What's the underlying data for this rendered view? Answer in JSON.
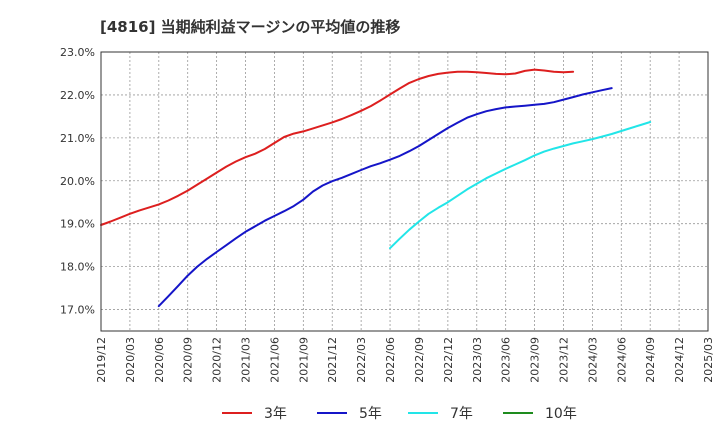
{
  "title": "[4816]  当期純利益マージンの平均値の推移",
  "chart_data": {
    "type": "line",
    "ylim": [
      16.5,
      23.0
    ],
    "y_ticks": [
      "17.0%",
      "18.0%",
      "19.0%",
      "20.0%",
      "21.0%",
      "22.0%",
      "23.0%"
    ],
    "y_tick_values": [
      17.0,
      18.0,
      19.0,
      20.0,
      21.0,
      22.0,
      23.0
    ],
    "x_ticks": [
      "2019/12",
      "2020/03",
      "2020/06",
      "2020/09",
      "2020/12",
      "2021/03",
      "2021/06",
      "2021/09",
      "2021/12",
      "2022/03",
      "2022/06",
      "2022/09",
      "2022/12",
      "2023/03",
      "2023/06",
      "2023/09",
      "2023/12",
      "2024/03",
      "2024/06",
      "2024/09",
      "2024/12",
      "2025/03"
    ],
    "grid": true,
    "legend_position": "bottom",
    "series": [
      {
        "name": "3年",
        "color": "#dd1f1f",
        "start_index": 0,
        "values": [
          18.97,
          19.05,
          19.14,
          19.23,
          19.31,
          19.38,
          19.45,
          19.54,
          19.65,
          19.77,
          19.91,
          20.05,
          20.19,
          20.33,
          20.45,
          20.55,
          20.63,
          20.74,
          20.88,
          21.02,
          21.1,
          21.15,
          21.22,
          21.29,
          21.36,
          21.44,
          21.53,
          21.63,
          21.74,
          21.87,
          22.01,
          22.15,
          22.28,
          22.37,
          22.44,
          22.49,
          22.52,
          22.54,
          22.54,
          22.53,
          22.51,
          22.49,
          22.48,
          22.5,
          22.56,
          22.59,
          22.57,
          22.54,
          22.53,
          22.54
        ]
      },
      {
        "name": "5年",
        "color": "#1515c8",
        "start_index": 6,
        "values": [
          17.08,
          17.31,
          17.55,
          17.79,
          18.0,
          18.18,
          18.34,
          18.5,
          18.66,
          18.81,
          18.94,
          19.07,
          19.18,
          19.29,
          19.41,
          19.56,
          19.75,
          19.89,
          19.99,
          20.07,
          20.16,
          20.25,
          20.34,
          20.41,
          20.49,
          20.58,
          20.69,
          20.81,
          20.95,
          21.09,
          21.23,
          21.35,
          21.47,
          21.55,
          21.62,
          21.67,
          21.71,
          21.73,
          21.75,
          21.77,
          21.79,
          21.83,
          21.89,
          21.95,
          22.01,
          22.06,
          22.11,
          22.16
        ]
      },
      {
        "name": "7年",
        "color": "#22e5e8",
        "start_index": 30,
        "values": [
          18.43,
          18.65,
          18.86,
          19.05,
          19.23,
          19.37,
          19.5,
          19.65,
          19.8,
          19.93,
          20.06,
          20.17,
          20.28,
          20.38,
          20.48,
          20.59,
          20.68,
          20.75,
          20.81,
          20.87,
          20.92,
          20.97,
          21.03,
          21.09,
          21.16,
          21.23,
          21.3,
          21.37
        ]
      },
      {
        "name": "10年",
        "color": "#1e8c1e",
        "start_index": 0,
        "values": []
      }
    ]
  }
}
